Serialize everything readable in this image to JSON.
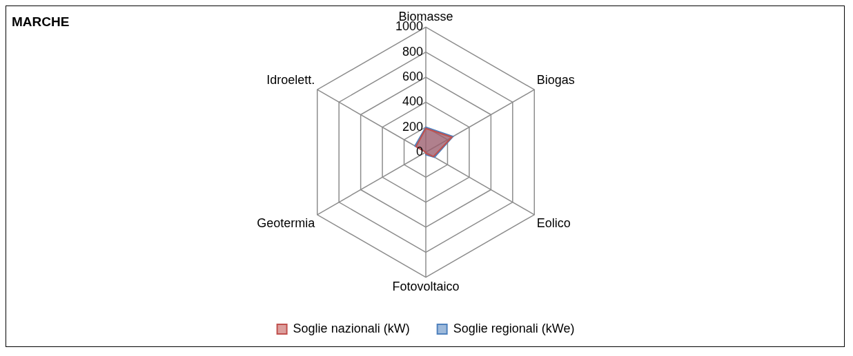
{
  "chart_data": {
    "type": "radar",
    "title": "MARCHE",
    "categories": [
      "Biomasse",
      "Biogas",
      "Eolico",
      "Fotovoltaico",
      "Geotermia",
      "Idroelett."
    ],
    "series": [
      {
        "name": "Soglie nazionali (kW)",
        "color": "#c0504d",
        "values": [
          190,
          240,
          70,
          10,
          0,
          90
        ]
      },
      {
        "name": "Soglie regionali (kWe)",
        "color": "#4f81bd",
        "values": [
          200,
          250,
          80,
          20,
          0,
          100
        ]
      }
    ],
    "ylim": [
      0,
      1000
    ],
    "yticks": [
      0,
      200,
      400,
      600,
      800,
      1000
    ],
    "legend": "bottom",
    "grid": true
  }
}
